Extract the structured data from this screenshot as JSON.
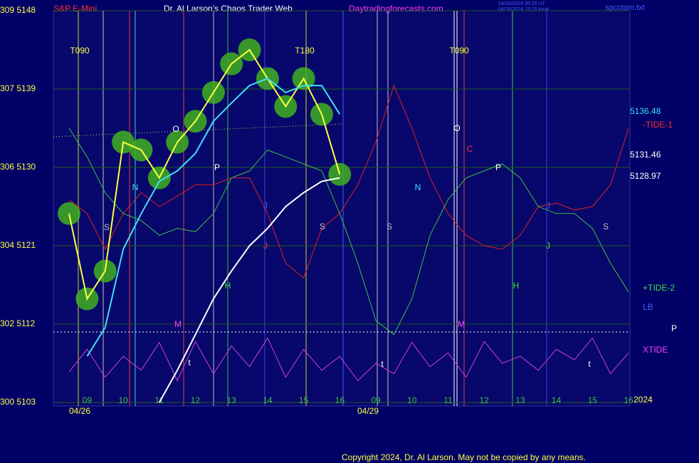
{
  "chart_data": {
    "type": "line",
    "title": "Dr. Al Larson's Chaos Trader Web",
    "symbol": "S&P E-Mini",
    "site": "Daytradingforecasts.com",
    "timestamp_ut": "04/26/2024 20:20 UT",
    "timestamp_local": "04/26/2024 15:20 local",
    "file": "spcctom.txt",
    "copyright": "Copyright 2024, Dr. Al Larson. May not be copied by any means.",
    "dates": [
      "04/26",
      "04/29",
      "2024"
    ],
    "categories": [
      null,
      "09",
      null,
      "10",
      null,
      "11",
      null,
      "12",
      null,
      "13",
      null,
      "14",
      null,
      "15",
      null,
      "16",
      null,
      "09",
      null,
      "10",
      null,
      "11",
      null,
      "12",
      null,
      "13",
      null,
      "14",
      null,
      "15",
      null,
      "16"
    ],
    "ylim": [
      5103,
      5148
    ],
    "yticks": [
      {
        "value": 5103,
        "label": "300 5103"
      },
      {
        "value": 5112,
        "label": "302 5112"
      },
      {
        "value": 5121,
        "label": "304 5121"
      },
      {
        "value": 5130,
        "label": "306 5130"
      },
      {
        "value": 5139,
        "label": "307 5139"
      },
      {
        "value": 5148,
        "label": "309 5148"
      }
    ],
    "grid": true,
    "series": [
      {
        "name": "-TIDE-1",
        "color": "#e02020",
        "values": [
          5126.3,
          5124.7,
          5120.6,
          5124.7,
          5127.1,
          5125.5,
          5126.7,
          5128.0,
          5128.0,
          5128.8,
          5128.8,
          5124.7,
          5119.0,
          5117.3,
          5123.0,
          5124.7,
          5128.0,
          5132.9,
          5139.4,
          5134.5,
          5128.8,
          5124.7,
          5122.2,
          5121.0,
          5120.6,
          5122.2,
          5125.5,
          5125.9,
          5125.1,
          5125.5,
          5128.0,
          5134.5
        ]
      },
      {
        "name": "+TIDE-2",
        "color": "#40c040",
        "values": [
          5134.5,
          5131.2,
          5127.1,
          5124.7,
          5123.9,
          5122.2,
          5123.0,
          5122.6,
          5124.7,
          5128.8,
          5129.6,
          5132.0,
          5131.2,
          5130.4,
          5129.6,
          5124.7,
          5119.0,
          5112.4,
          5110.8,
          5114.9,
          5122.2,
          5126.3,
          5128.8,
          5129.6,
          5130.4,
          5128.8,
          5125.5,
          5124.7,
          5124.7,
          5123.0,
          5119.0,
          5115.7
        ]
      },
      {
        "name": "XTIDE",
        "color": "#d040d0",
        "values": [
          5106.5,
          5109.1,
          5105.9,
          5108.3,
          5106.7,
          5109.9,
          5105.5,
          5110.0,
          5106.3,
          5109.5,
          5107.1,
          5110.4,
          5105.9,
          5109.1,
          5106.7,
          5108.3,
          5105.5,
          5107.5,
          5106.3,
          5109.9,
          5107.1,
          5108.7,
          5105.9,
          5110.0,
          5107.5,
          5108.3,
          5106.7,
          5109.1,
          5107.9,
          5110.4,
          5106.3,
          5108.7
        ]
      },
      {
        "name": "Price",
        "color": "#ffff40",
        "values": [
          5124.7,
          5114.9,
          5118.1,
          5132.9,
          5132.0,
          5128.8,
          5132.9,
          5135.3,
          5138.6,
          5141.9,
          5143.5,
          5140.2,
          5137.0,
          5140.2,
          5136.1,
          5129.2,
          null,
          null,
          null,
          null,
          null,
          null,
          null,
          null,
          null,
          null,
          null,
          null,
          null,
          null,
          null,
          null
        ]
      },
      {
        "name": "Average",
        "color": "#40e0f0",
        "values": [
          null,
          5108.3,
          5111.6,
          5120.6,
          5124.7,
          5128.4,
          5129.6,
          5131.6,
          5135.3,
          5137.4,
          5139.4,
          5140.2,
          5138.6,
          5139.4,
          5139.4,
          5136.1,
          null,
          null,
          null,
          null,
          null,
          null,
          null,
          null,
          null,
          null,
          null,
          null,
          null,
          null,
          null,
          null
        ]
      },
      {
        "name": "Trend",
        "color": "#ffffff",
        "values": [
          null,
          null,
          null,
          null,
          null,
          5103,
          5106.7,
          5110.8,
          5114.9,
          5118.1,
          5121.0,
          5123.0,
          5125.5,
          5127.1,
          5128.4,
          5128.8,
          null,
          null,
          null,
          null,
          null,
          null,
          null,
          null,
          null,
          null,
          null,
          null,
          null,
          null,
          null,
          null
        ]
      }
    ],
    "right_labels": [
      "5136.48",
      "-TIDE-1",
      "5131.46",
      "5128.97",
      "+TIDE-2",
      "LB",
      "P",
      "XTIDE"
    ],
    "annotations": [
      "T090",
      "T180",
      "T090",
      "O",
      "P",
      "N",
      "S",
      "J",
      "J",
      "H",
      "M",
      "t",
      "S",
      "S",
      "N",
      "O",
      "C",
      "P",
      "J",
      "J",
      "H",
      "M",
      "t",
      "t",
      "S"
    ]
  }
}
